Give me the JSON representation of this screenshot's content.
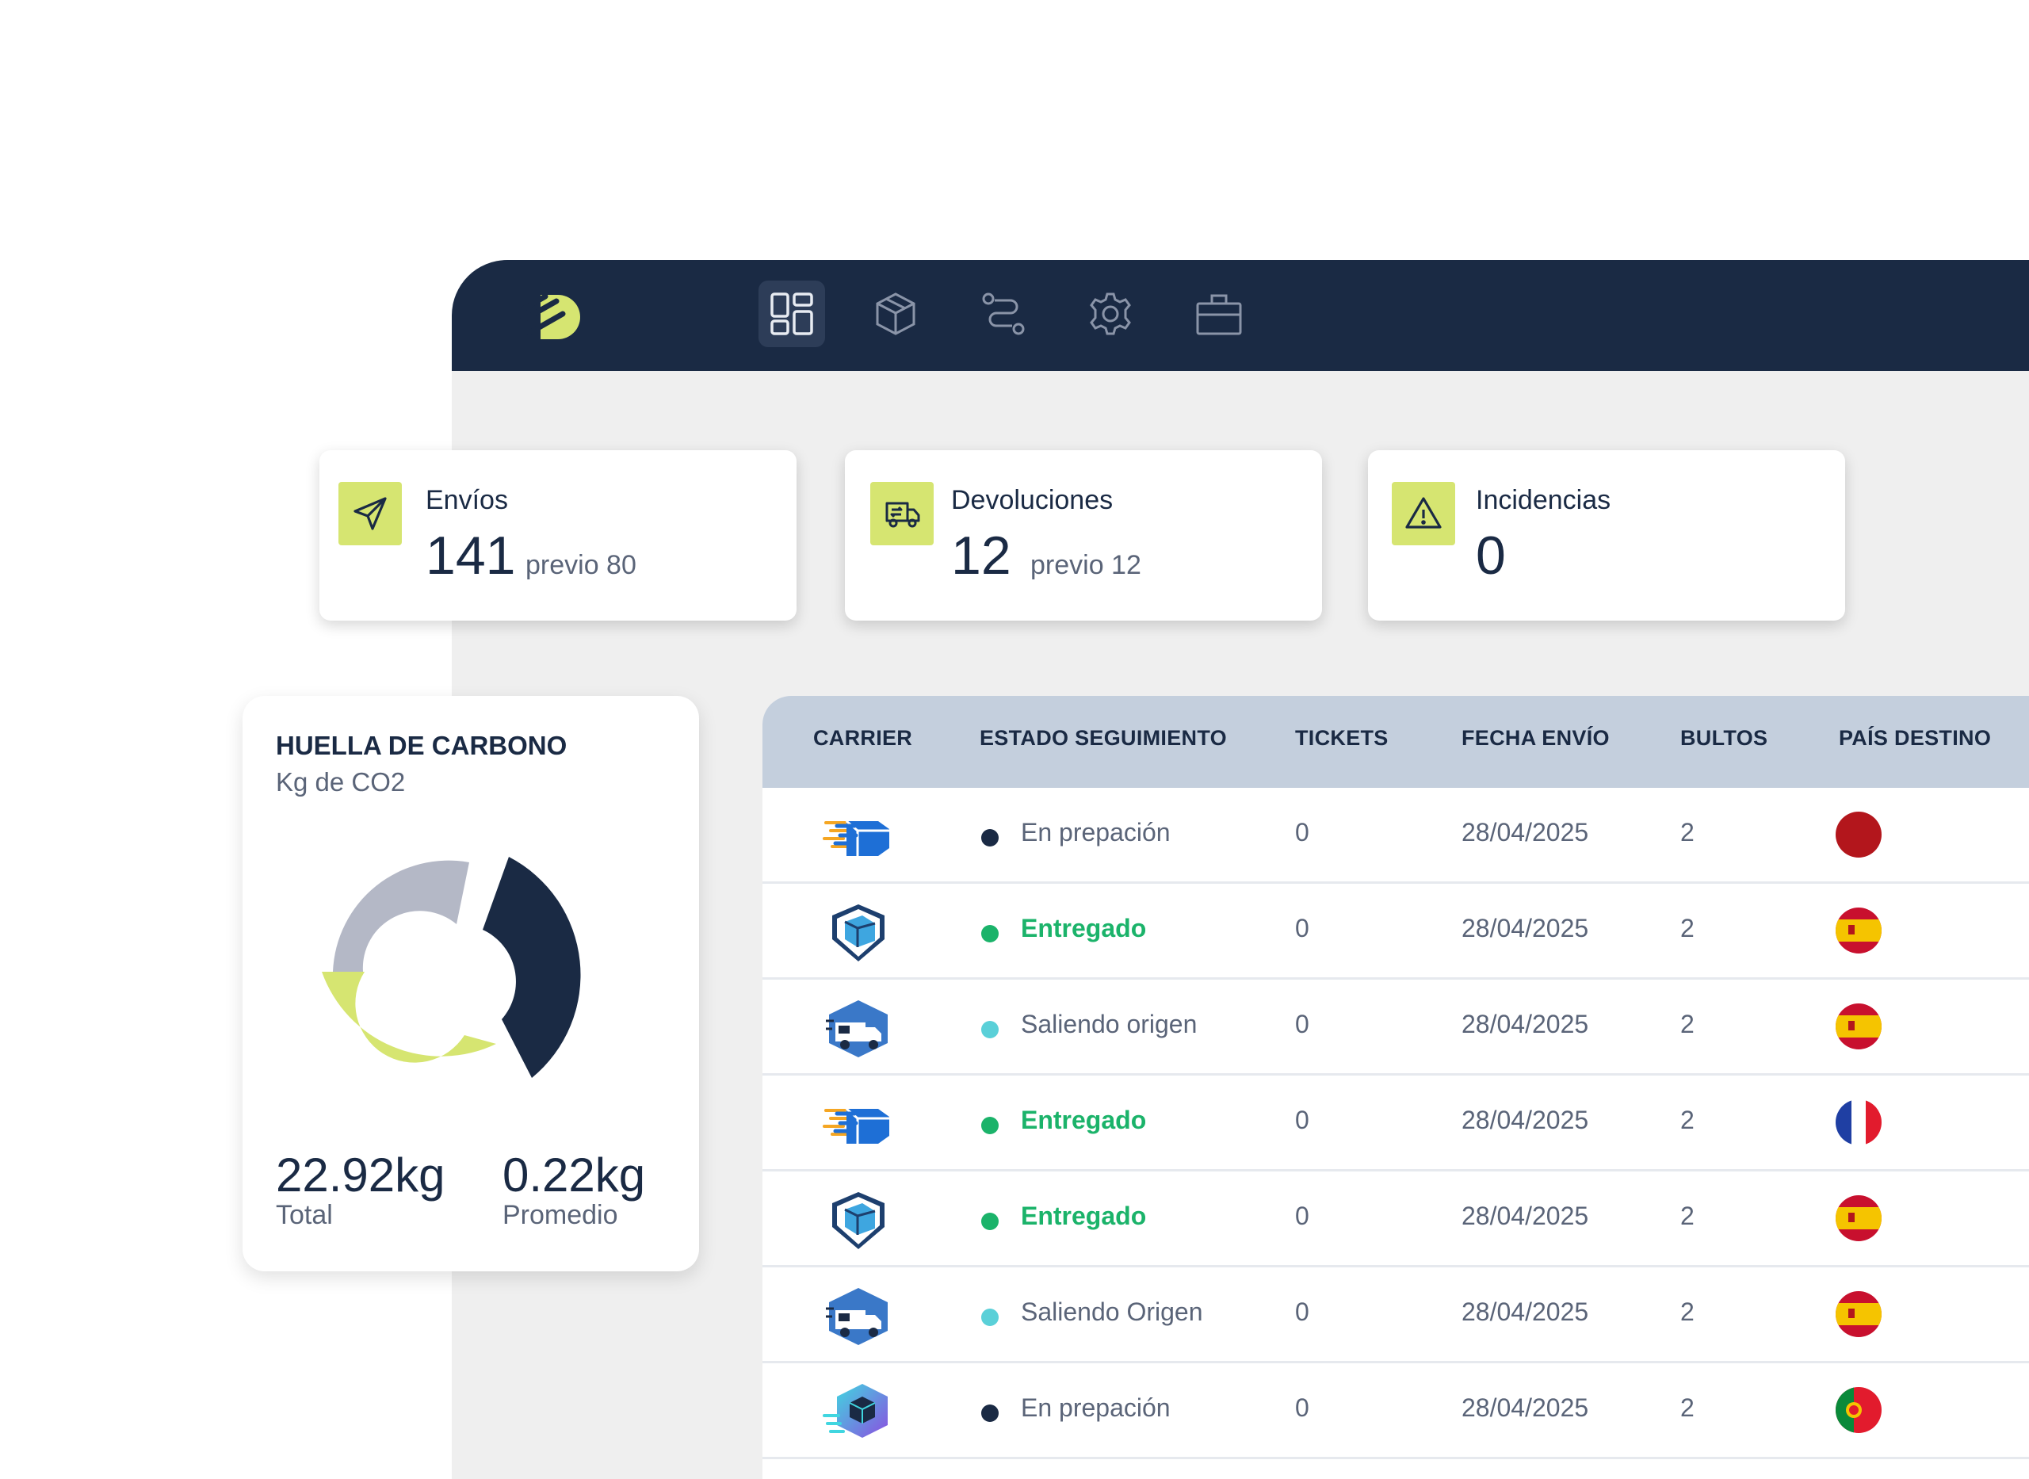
{
  "stats": [
    {
      "label": "Envíos",
      "value": "141",
      "prev": "previo 80"
    },
    {
      "label": "Devoluciones",
      "value": "12",
      "prev": "previo 12"
    },
    {
      "label": "Incidencias",
      "value": "0",
      "prev": ""
    }
  ],
  "carbon": {
    "title": "HUELLA DE CARBONO",
    "subtitle": "Kg de CO2",
    "total_value": "22.92kg",
    "total_label": "Total",
    "avg_value": "0.22kg",
    "avg_label": "Promedio",
    "segment_colors": [
      "#1a2a44",
      "#d6e571",
      "#b4b8c6"
    ]
  },
  "table": {
    "headers": [
      "CARRIER",
      "ESTADO SEGUIMIENTO",
      "TICKETS",
      "FECHA ENVÍO",
      "BULTOS",
      "PAÍS DESTINO"
    ],
    "rows": [
      {
        "carrier_icon": "speed-box-carrier-icon",
        "status": "En prepación",
        "status_color": "#1a2a44",
        "tickets": "0",
        "date": "28/04/2025",
        "packages": "2",
        "flag": "red-flag-icon"
      },
      {
        "carrier_icon": "shield-box-carrier-icon",
        "status": "Entregado",
        "status_color": "#1bb36a",
        "tickets": "0",
        "date": "28/04/2025",
        "packages": "2",
        "flag": "spain-flag-icon"
      },
      {
        "carrier_icon": "truck-carrier-icon",
        "status": "Saliendo origen",
        "status_color": "#5ad0d8",
        "tickets": "0",
        "date": "28/04/2025",
        "packages": "2",
        "flag": "spain-flag-icon"
      },
      {
        "carrier_icon": "speed-box-carrier-icon",
        "status": "Entregado",
        "status_color": "#1bb36a",
        "tickets": "0",
        "date": "28/04/2025",
        "packages": "2",
        "flag": "france-flag-icon"
      },
      {
        "carrier_icon": "shield-box-carrier-icon",
        "status": "Entregado",
        "status_color": "#1bb36a",
        "tickets": "0",
        "date": "28/04/2025",
        "packages": "2",
        "flag": "spain-flag-icon"
      },
      {
        "carrier_icon": "truck-carrier-icon",
        "status": "Saliendo Origen",
        "status_color": "#5ad0d8",
        "tickets": "0",
        "date": "28/04/2025",
        "packages": "2",
        "flag": "spain-flag-icon"
      },
      {
        "carrier_icon": "gradient-box-carrier-icon",
        "status": "En prepación",
        "status_color": "#1a2a44",
        "tickets": "0",
        "date": "28/04/2025",
        "packages": "2",
        "flag": "portugal-flag-icon"
      }
    ]
  }
}
